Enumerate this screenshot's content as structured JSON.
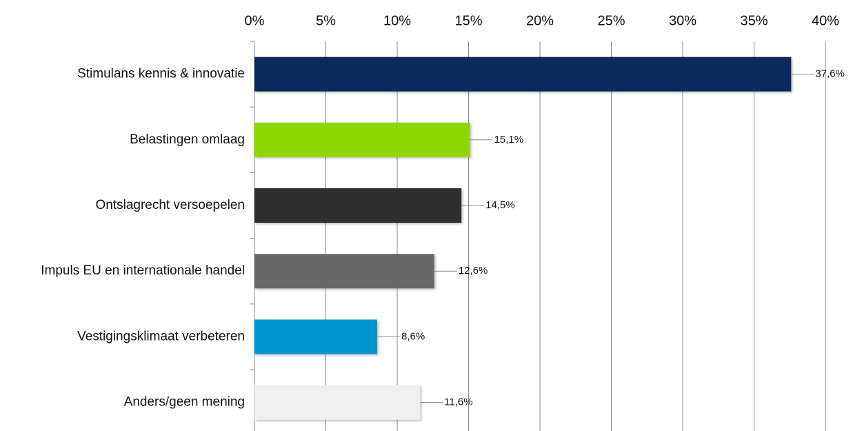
{
  "chart_data": {
    "type": "barh",
    "categories": [
      "Stimulans kennis & innovatie",
      "Belastingen omlaag",
      "Ontslagrecht versoepelen",
      "Impuls EU en internationale handel",
      "Vestigingsklimaat verbeteren",
      "Anders/geen mening"
    ],
    "values": [
      37.6,
      15.1,
      14.5,
      12.6,
      8.6,
      11.6
    ],
    "value_labels": [
      "37,6%",
      "15,1%",
      "14,5%",
      "12,6%",
      "8,6%",
      "11,6%"
    ],
    "colors": [
      "#0c2a5b",
      "#8ed600",
      "#2e2e2e",
      "#686868",
      "#0096d6",
      "#efefef"
    ],
    "xlim": [
      0,
      40
    ],
    "xticks": [
      {
        "value": 0,
        "label": "0%"
      },
      {
        "value": 5,
        "label": "5%"
      },
      {
        "value": 10,
        "label": "10%"
      },
      {
        "value": 15,
        "label": "15%"
      },
      {
        "value": 20,
        "label": "20%"
      },
      {
        "value": 25,
        "label": "25%"
      },
      {
        "value": 30,
        "label": "30%"
      },
      {
        "value": 35,
        "label": "35%"
      },
      {
        "value": 40,
        "label": "40%"
      }
    ],
    "grid": true
  }
}
